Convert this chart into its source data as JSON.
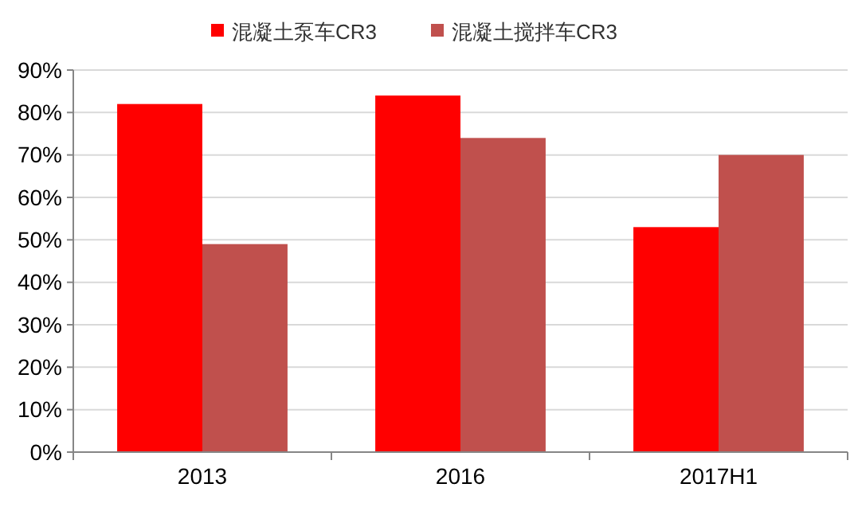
{
  "chart_data": {
    "type": "bar",
    "categories": [
      "2013",
      "2016",
      "2017H1"
    ],
    "series": [
      {
        "name": "混凝土泵车CR3",
        "color": "#ff0000",
        "values": [
          82,
          84,
          53
        ]
      },
      {
        "name": "混凝土搅拌车CR3",
        "color": "#c0504d",
        "values": [
          49,
          74,
          70
        ]
      }
    ],
    "ylim": [
      0,
      90
    ],
    "yticks": [
      {
        "value": 0,
        "label": "0%"
      },
      {
        "value": 10,
        "label": "10%"
      },
      {
        "value": 20,
        "label": "20%"
      },
      {
        "value": 30,
        "label": "30%"
      },
      {
        "value": 40,
        "label": "40%"
      },
      {
        "value": 50,
        "label": "50%"
      },
      {
        "value": 60,
        "label": "60%"
      },
      {
        "value": 70,
        "label": "70%"
      },
      {
        "value": 80,
        "label": "80%"
      },
      {
        "value": 90,
        "label": "90%"
      }
    ],
    "grid": "y",
    "legend": "top"
  }
}
